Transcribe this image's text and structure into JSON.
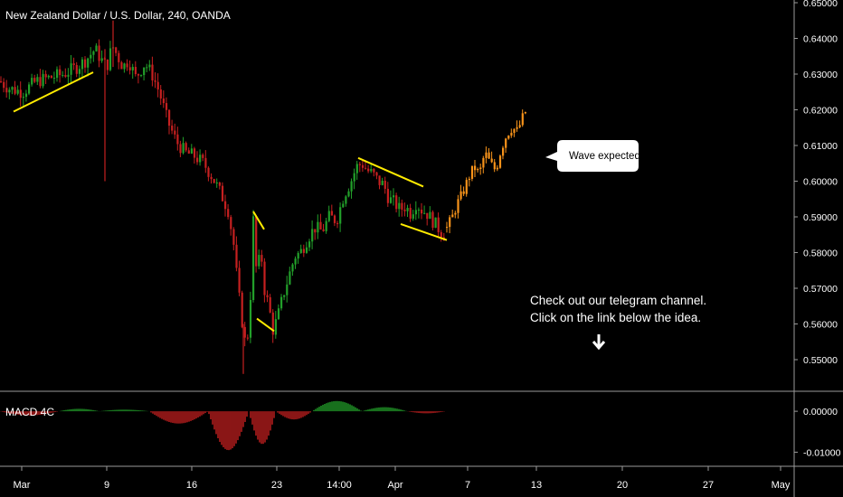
{
  "header": {
    "title": "New Zealand Dollar / U.S. Dollar, 240, OANDA"
  },
  "annotations": {
    "callout": "Wave expected",
    "note_line1": "Check out our telegram channel.",
    "note_line2": "Click on the link below the idea."
  },
  "colors": {
    "background": "#000000",
    "up": "#22a02a",
    "down": "#c62020",
    "projection": "#f7931a",
    "trendline": "#ffeb00",
    "separator": "#aaaaaa",
    "text": "#ffffff"
  },
  "chart_data": [
    {
      "type": "candlestick",
      "title": "New Zealand Dollar / U.S. Dollar, 240, OANDA",
      "ylim": [
        0.545,
        0.65
      ],
      "yticks": [
        "0.65000",
        "0.64000",
        "0.63000",
        "0.62000",
        "0.61000",
        "0.60000",
        "0.59000",
        "0.58000",
        "0.57000",
        "0.56000",
        "0.55000"
      ],
      "xticks": [
        "Mar",
        "9",
        "16",
        "23",
        "14:00",
        "Apr",
        "7",
        "13",
        "20",
        "27",
        "May"
      ],
      "price_path": [
        [
          0,
          0.628
        ],
        [
          10,
          0.626
        ],
        [
          25,
          0.625
        ],
        [
          40,
          0.628
        ],
        [
          55,
          0.629
        ],
        [
          70,
          0.63
        ],
        [
          85,
          0.632
        ],
        [
          95,
          0.634
        ],
        [
          105,
          0.637
        ],
        [
          112,
          0.634
        ],
        [
          118,
          0.632
        ],
        [
          124,
          0.638
        ],
        [
          130,
          0.635
        ],
        [
          136,
          0.632
        ],
        [
          142,
          0.634
        ],
        [
          150,
          0.629
        ],
        [
          160,
          0.633
        ],
        [
          168,
          0.63
        ],
        [
          176,
          0.625
        ],
        [
          185,
          0.617
        ],
        [
          195,
          0.611
        ],
        [
          205,
          0.608
        ],
        [
          215,
          0.607
        ],
        [
          225,
          0.605
        ],
        [
          235,
          0.601
        ],
        [
          245,
          0.596
        ],
        [
          252,
          0.592
        ],
        [
          258,
          0.583
        ],
        [
          263,
          0.57
        ],
        [
          268,
          0.56
        ],
        [
          272,
          0.553
        ],
        [
          276,
          0.562
        ],
        [
          280,
          0.589
        ],
        [
          284,
          0.572
        ],
        [
          288,
          0.582
        ],
        [
          292,
          0.57
        ],
        [
          297,
          0.565
        ],
        [
          302,
          0.558
        ],
        [
          308,
          0.563
        ],
        [
          314,
          0.569
        ],
        [
          320,
          0.574
        ],
        [
          326,
          0.579
        ],
        [
          332,
          0.58
        ],
        [
          340,
          0.584
        ],
        [
          348,
          0.587
        ],
        [
          356,
          0.586
        ],
        [
          364,
          0.59
        ],
        [
          372,
          0.589
        ],
        [
          380,
          0.596
        ],
        [
          388,
          0.6
        ],
        [
          394,
          0.604
        ],
        [
          400,
          0.605
        ],
        [
          406,
          0.603
        ],
        [
          412,
          0.602
        ],
        [
          418,
          0.6
        ],
        [
          424,
          0.599
        ],
        [
          430,
          0.595
        ],
        [
          436,
          0.594
        ],
        [
          442,
          0.592
        ],
        [
          448,
          0.593
        ],
        [
          454,
          0.591
        ],
        [
          460,
          0.594
        ],
        [
          466,
          0.592
        ],
        [
          472,
          0.591
        ],
        [
          478,
          0.589
        ],
        [
          484,
          0.587
        ],
        [
          490,
          0.585
        ]
      ],
      "projection_path": [
        [
          494,
          0.587
        ],
        [
          500,
          0.59
        ],
        [
          506,
          0.594
        ],
        [
          512,
          0.597
        ],
        [
          518,
          0.601
        ],
        [
          524,
          0.604
        ],
        [
          530,
          0.602
        ],
        [
          536,
          0.608
        ],
        [
          542,
          0.605
        ],
        [
          548,
          0.603
        ],
        [
          554,
          0.609
        ],
        [
          560,
          0.613
        ],
        [
          566,
          0.615
        ],
        [
          572,
          0.614
        ],
        [
          578,
          0.618
        ],
        [
          582,
          0.62
        ]
      ]
    },
    {
      "type": "histogram",
      "title": "MACD 4C",
      "ylim": [
        -0.013,
        0.004
      ],
      "yticks": [
        "0.00000",
        "-0.01000"
      ],
      "segments": [
        {
          "from": 0,
          "to": 65,
          "level": -0.001
        },
        {
          "from": 65,
          "to": 110,
          "level": 0.0006
        },
        {
          "from": 110,
          "to": 165,
          "level": 0.0004
        },
        {
          "from": 165,
          "to": 230,
          "level": -0.003
        },
        {
          "from": 230,
          "to": 275,
          "level": -0.0095
        },
        {
          "from": 275,
          "to": 305,
          "level": -0.008
        },
        {
          "from": 305,
          "to": 345,
          "level": -0.002
        },
        {
          "from": 345,
          "to": 400,
          "level": 0.0025
        },
        {
          "from": 400,
          "to": 450,
          "level": 0.001
        },
        {
          "from": 450,
          "to": 493,
          "level": -0.0005
        }
      ]
    }
  ]
}
